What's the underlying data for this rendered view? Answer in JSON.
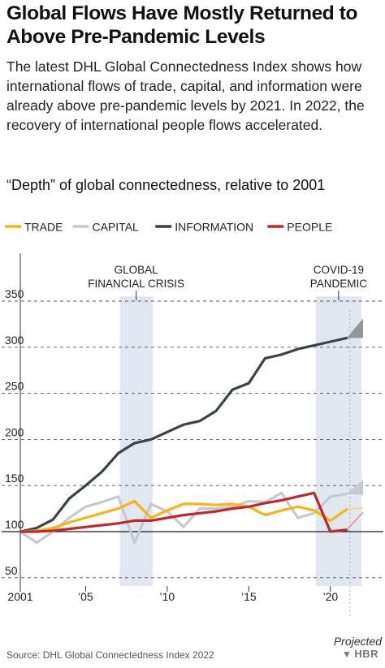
{
  "header": {
    "title": "Global Flows Have Mostly Returned to Above Pre-Pandemic Levels",
    "subtitle": "The latest DHL Global Connectedness Index shows how international flows of trade, capital, and information were already above pre-pandemic levels by 2021. In 2022, the recovery of international people flows accelerated."
  },
  "footer": {
    "source": "Source: DHL Global Connectedness Index 2022",
    "brand": "HBR"
  },
  "chart_data": {
    "type": "line",
    "title": "“Depth” of global connectedness, relative to 2001",
    "x_tick_labels": [
      "2001",
      "’05",
      "’10",
      "’15",
      "’20"
    ],
    "x_tick_values": [
      2001,
      2005,
      2010,
      2015,
      2020
    ],
    "y_tick_labels": [
      "350",
      "300",
      "250",
      "200",
      "150",
      "100",
      "50"
    ],
    "y_tick_values": [
      350,
      300,
      250,
      200,
      150,
      100,
      50
    ],
    "xlim": [
      2001,
      2022
    ],
    "ylim": [
      40,
      360
    ],
    "baseline": 100,
    "grid": "dashed horizontal lines at each y tick, solid baseline at 100",
    "legend_position": "top-left",
    "shaded_periods": [
      {
        "label": "GLOBAL FINANCIAL CRISIS",
        "start": 2007.1,
        "end": 2009.1
      },
      {
        "label": "COVID-19 PANDEMIC",
        "start": 2019.1,
        "end": 2021.9
      }
    ],
    "projection": {
      "label": "Projected",
      "start": 2021,
      "end": 2022
    },
    "series": [
      {
        "name": "TRADE",
        "color": "#f5b514",
        "x": [
          2001,
          2002,
          2003,
          2004,
          2005,
          2006,
          2007,
          2008,
          2009,
          2010,
          2011,
          2012,
          2013,
          2014,
          2015,
          2016,
          2017,
          2018,
          2019,
          2020,
          2021
        ],
        "y": [
          100,
          101,
          104,
          110,
          115,
          120,
          125,
          133,
          115,
          123,
          130,
          130,
          129,
          130,
          127,
          118,
          123,
          127,
          123,
          112,
          124
        ],
        "projected": [
          [
            2021,
            124
          ],
          [
            2022,
            126
          ]
        ]
      },
      {
        "name": "CAPITAL",
        "color": "#c4cacf",
        "x": [
          2001,
          2002,
          2003,
          2004,
          2005,
          2006,
          2007,
          2008,
          2009,
          2010,
          2011,
          2012,
          2013,
          2014,
          2015,
          2016,
          2017,
          2018,
          2019,
          2020,
          2021
        ],
        "y": [
          100,
          88,
          100,
          115,
          127,
          132,
          138,
          88,
          130,
          122,
          105,
          125,
          125,
          127,
          133,
          132,
          142,
          115,
          120,
          138,
          141
        ],
        "projected": [
          [
            2021,
            141
          ],
          [
            2022,
            146
          ]
        ]
      },
      {
        "name": "INFORMATION",
        "color": "#3c4146",
        "x": [
          2001,
          2002,
          2003,
          2004,
          2005,
          2006,
          2007,
          2008,
          2009,
          2010,
          2011,
          2012,
          2013,
          2014,
          2015,
          2016,
          2017,
          2018,
          2019,
          2020,
          2021
        ],
        "y": [
          100,
          104,
          113,
          136,
          150,
          165,
          185,
          196,
          200,
          208,
          216,
          220,
          231,
          254,
          261,
          288,
          292,
          298,
          302,
          306,
          310
        ],
        "projected": [
          [
            2021,
            310
          ],
          [
            2022,
            318
          ]
        ]
      },
      {
        "name": "PEOPLE",
        "color": "#c0272d",
        "x": [
          2001,
          2002,
          2003,
          2004,
          2005,
          2006,
          2007,
          2008,
          2009,
          2010,
          2011,
          2012,
          2013,
          2014,
          2015,
          2016,
          2017,
          2018,
          2019,
          2020,
          2021
        ],
        "y": [
          100,
          100,
          101,
          103,
          105,
          107,
          109,
          112,
          112,
          115,
          118,
          120,
          122,
          125,
          127,
          131,
          134,
          138,
          142,
          100,
          102
        ],
        "projected": [
          [
            2021,
            102
          ],
          [
            2022,
            121
          ]
        ]
      }
    ]
  }
}
